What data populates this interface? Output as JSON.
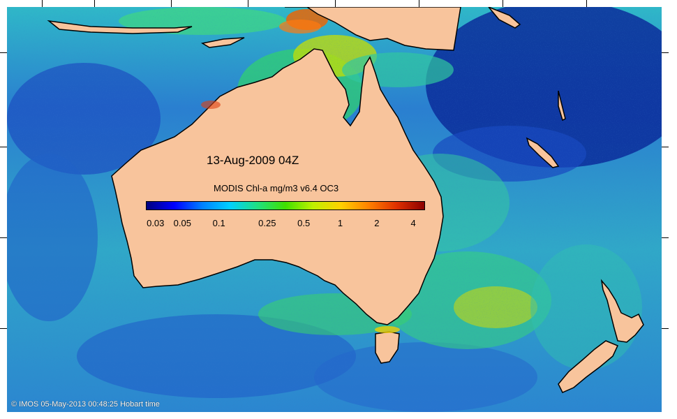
{
  "map": {
    "date_label": "13-Aug-2009 04Z",
    "colorbar": {
      "title": "MODIS Chl-a mg/m3 v6.4 OC3",
      "ticks": [
        "0.03",
        "0.05",
        "0.1",
        "0.25",
        "0.5",
        "1",
        "2",
        "4"
      ],
      "gradient": [
        "#00007f",
        "#0000ff",
        "#0080ff",
        "#00d0ff",
        "#20e080",
        "#40e000",
        "#c0f000",
        "#ffd000",
        "#ff8000",
        "#e03000",
        "#8b0000"
      ]
    },
    "credit": "© IMOS 05-May-2013 00:48:25 Hobart time",
    "colors": {
      "land": "#f8c49c",
      "ocean_low": "#0a2fa0",
      "ocean_mid": "#2c7fd0",
      "ocean_high": "#2fd0a0",
      "bloom": "#e0e000",
      "coastline": "#000000"
    }
  }
}
